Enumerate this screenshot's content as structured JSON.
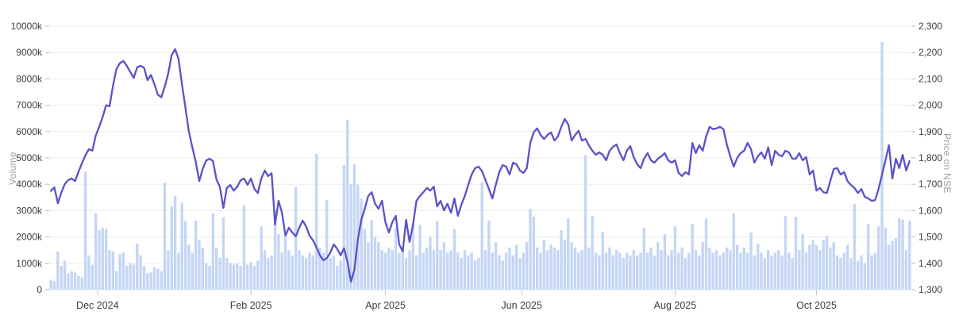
{
  "chart": {
    "background": "#ffffff",
    "left_axis_title": "Volume",
    "right_axis_title": "Price on NSE"
  },
  "chart_data": {
    "type": "bar+line",
    "title": "",
    "grid": "horizontal",
    "legend": "none",
    "x_ticks": [
      {
        "label": "Dec 2024",
        "day": 13.5
      },
      {
        "label": "Feb 2025",
        "day": 58
      },
      {
        "label": "Apr 2025",
        "day": 97
      },
      {
        "label": "Jun 2025",
        "day": 136.5
      },
      {
        "label": "Aug 2025",
        "day": 181
      },
      {
        "label": "Oct 2025",
        "day": 222
      }
    ],
    "left_axis": {
      "title": "Volume",
      "unit": "k",
      "min": 0,
      "max": 10000,
      "ticks": [
        "0",
        "1000k",
        "2000k",
        "3000k",
        "4000k",
        "5000k",
        "6000k",
        "7000k",
        "8000k",
        "9000k",
        "10000k"
      ]
    },
    "right_axis": {
      "title": "Price on NSE",
      "min": 1300,
      "max": 2300,
      "ticks": [
        "1,300",
        "1,400",
        "1,500",
        "1,600",
        "1,700",
        "1,800",
        "1,900",
        "2,000",
        "2,100",
        "2,200",
        "2,300"
      ]
    },
    "series": [
      {
        "name": "Volume",
        "type": "bar",
        "unit": "k",
        "color": "#c5d6f4",
        "values": [
          380,
          320,
          1450,
          900,
          1100,
          620,
          700,
          650,
          520,
          460,
          4480,
          1300,
          950,
          2900,
          2250,
          2350,
          2300,
          1500,
          1450,
          700,
          1350,
          1400,
          900,
          1000,
          950,
          1750,
          1300,
          900,
          620,
          650,
          850,
          800,
          700,
          4060,
          1500,
          3160,
          3550,
          1400,
          3300,
          2600,
          1700,
          1400,
          2620,
          1900,
          1600,
          1000,
          900,
          2900,
          1600,
          1200,
          2750,
          1200,
          1000,
          950,
          1000,
          900,
          3200,
          950,
          1050,
          900,
          1100,
          2400,
          1500,
          1200,
          1300,
          3000,
          2100,
          1400,
          2000,
          1500,
          1300,
          3900,
          1500,
          1300,
          1200,
          1400,
          1300,
          5150,
          1600,
          1400,
          3400,
          1200,
          1300,
          900,
          1100,
          4730,
          6450,
          4000,
          4760,
          3980,
          3460,
          2300,
          1800,
          2650,
          2000,
          1800,
          1500,
          1400,
          1600,
          1500,
          2350,
          1400,
          1600,
          1200,
          1500,
          2500,
          1300,
          2470,
          1400,
          1600,
          2000,
          1500,
          2600,
          1500,
          1800,
          1400,
          1500,
          2300,
          1400,
          1200,
          1500,
          1300,
          1400,
          1100,
          1200,
          4070,
          1500,
          2620,
          1400,
          1800,
          1300,
          1100,
          1400,
          1600,
          1300,
          1700,
          1200,
          1400,
          1800,
          3070,
          2770,
          1600,
          1400,
          1900,
          1500,
          1700,
          1600,
          1500,
          2260,
          1900,
          2700,
          1800,
          1600,
          1400,
          1500,
          5100,
          1600,
          2800,
          1400,
          1300,
          2200,
          1400,
          1600,
          1300,
          1500,
          1400,
          1200,
          1400,
          1300,
          1500,
          1300,
          1400,
          2350,
          1400,
          1600,
          1300,
          1800,
          1500,
          2100,
          1300,
          1500,
          2400,
          1400,
          1600,
          1200,
          1400,
          2500,
          1500,
          1300,
          1800,
          2700,
          1600,
          1400,
          1500,
          1300,
          1400,
          1600,
          1500,
          2900,
          1700,
          1400,
          1600,
          1400,
          2170,
          1300,
          1750,
          1400,
          1200,
          1500,
          1300,
          1400,
          1500,
          1300,
          2800,
          1400,
          1200,
          2770,
          1500,
          2100,
          1400,
          1700,
          1900,
          1700,
          1500,
          1900,
          2050,
          1600,
          1800,
          1300,
          1200,
          1400,
          1700,
          1200,
          3250,
          1100,
          1300,
          1000,
          2500,
          1300,
          1400,
          2400,
          9400,
          2350,
          1700,
          1850,
          1950,
          2700,
          2650,
          1500,
          2620
        ]
      },
      {
        "name": "Price on NSE",
        "type": "line",
        "color": "#5a52c8",
        "values": [
          1675,
          1688,
          1628,
          1668,
          1700,
          1716,
          1722,
          1712,
          1748,
          1780,
          1810,
          1833,
          1827,
          1885,
          1918,
          1955,
          2000,
          1996,
          2075,
          2138,
          2160,
          2168,
          2150,
          2126,
          2104,
          2144,
          2150,
          2142,
          2095,
          2115,
          2080,
          2040,
          2030,
          2070,
          2120,
          2190,
          2213,
          2175,
          2080,
          1990,
          1900,
          1840,
          1785,
          1712,
          1758,
          1790,
          1797,
          1788,
          1718,
          1690,
          1610,
          1686,
          1697,
          1676,
          1690,
          1715,
          1722,
          1698,
          1722,
          1682,
          1667,
          1722,
          1752,
          1731,
          1742,
          1547,
          1637,
          1592,
          1505,
          1535,
          1517,
          1502,
          1535,
          1562,
          1540,
          1505,
          1487,
          1460,
          1430,
          1411,
          1420,
          1440,
          1472,
          1455,
          1430,
          1457,
          1405,
          1330,
          1375,
          1490,
          1565,
          1607,
          1655,
          1670,
          1626,
          1607,
          1637,
          1556,
          1517,
          1556,
          1580,
          1472,
          1445,
          1565,
          1481,
          1547,
          1637,
          1655,
          1670,
          1686,
          1676,
          1691,
          1616,
          1637,
          1601,
          1626,
          1592,
          1646,
          1580,
          1622,
          1655,
          1697,
          1737,
          1761,
          1767,
          1750,
          1716,
          1682,
          1646,
          1697,
          1746,
          1773,
          1767,
          1737,
          1782,
          1776,
          1752,
          1743,
          1761,
          1857,
          1897,
          1912,
          1887,
          1872,
          1887,
          1897,
          1866,
          1881,
          1918,
          1948,
          1927,
          1866,
          1887,
          1903,
          1866,
          1872,
          1848,
          1827,
          1812,
          1821,
          1812,
          1791,
          1827,
          1842,
          1851,
          1818,
          1791,
          1827,
          1845,
          1803,
          1776,
          1761,
          1797,
          1818,
          1791,
          1782,
          1797,
          1806,
          1818,
          1791,
          1782,
          1791,
          1743,
          1731,
          1746,
          1737,
          1857,
          1818,
          1848,
          1827,
          1881,
          1918,
          1909,
          1912,
          1918,
          1909,
          1851,
          1806,
          1767,
          1800,
          1818,
          1827,
          1857,
          1833,
          1782,
          1806,
          1821,
          1797,
          1840,
          1773,
          1827,
          1812,
          1806,
          1827,
          1821,
          1797,
          1797,
          1818,
          1791,
          1803,
          1737,
          1752,
          1676,
          1686,
          1670,
          1667,
          1712,
          1758,
          1761,
          1737,
          1746,
          1712,
          1697,
          1686,
          1667,
          1682,
          1652,
          1646,
          1637,
          1640,
          1682,
          1737,
          1791,
          1848,
          1722,
          1797,
          1761,
          1812,
          1752,
          1788
        ]
      }
    ],
    "colors": {
      "grid": "#ececec",
      "axis_line": "#e0e0e0",
      "tick": "#b8b8b8",
      "x_tick": "#c4c4c4",
      "tick_label": "#3d3d3d",
      "axis_title": "#a0a0a0"
    }
  }
}
